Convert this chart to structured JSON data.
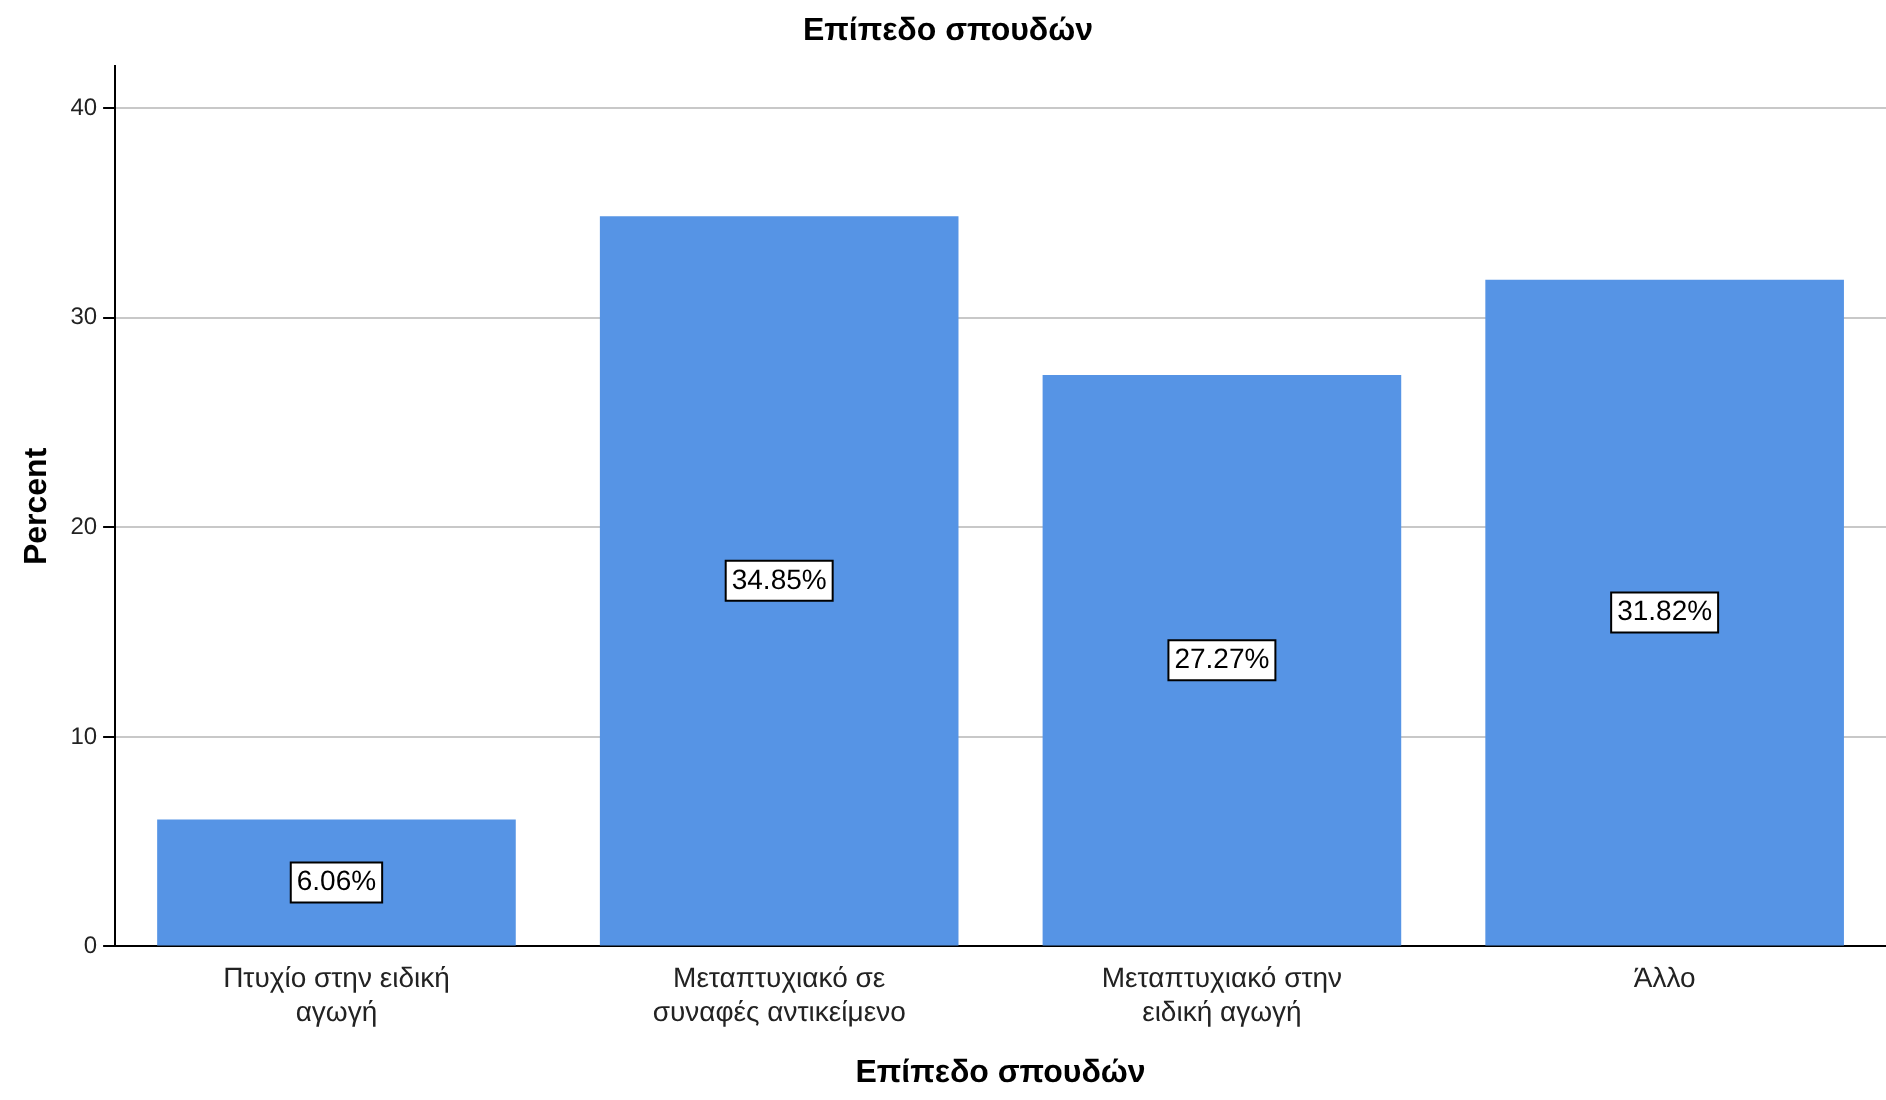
{
  "chart_data": {
    "type": "bar",
    "title": "Επίπεδο σπουδών",
    "xlabel": "Επίπεδο σπουδών",
    "ylabel": "Percent",
    "categories": [
      "Πτυχίο στην ειδική αγωγή",
      "Μεταπτυχιακό σε συναφές αντικείμενο",
      "Μεταπτυχιακό στην ειδική αγωγή",
      "Άλλο"
    ],
    "values": [
      6.06,
      34.85,
      27.27,
      31.82
    ],
    "value_labels": [
      "6.06%",
      "34.85%",
      "27.27%",
      "31.82%"
    ],
    "color": "#5694e5",
    "ylim": [
      0,
      42
    ],
    "yticks": [
      0,
      10,
      20,
      30,
      40
    ],
    "grid": "y",
    "legend": false
  }
}
